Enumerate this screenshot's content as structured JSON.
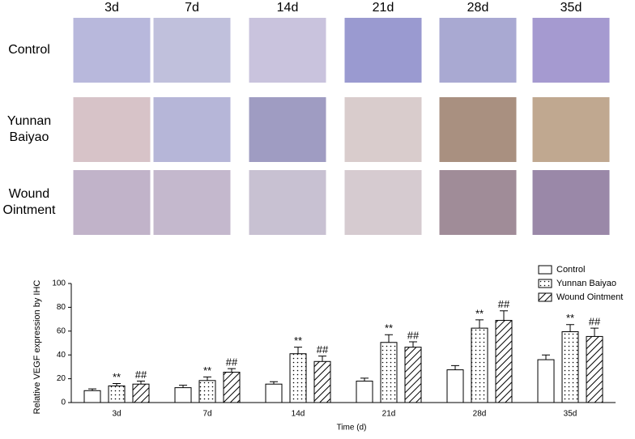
{
  "panel_grid": {
    "columns": [
      "3d",
      "7d",
      "14d",
      "21d",
      "28d",
      "35d"
    ],
    "rows": [
      "Control",
      "Yunnan Baiyao",
      "Wound Ointment"
    ]
  },
  "chart_data": {
    "type": "bar",
    "ylabel": "Relative VEGF expression by IHC",
    "xlabel": "Time (d)",
    "categories": [
      "3d",
      "7d",
      "14d",
      "21d",
      "28d",
      "35d"
    ],
    "ylim": [
      0,
      100
    ],
    "yticks": [
      0,
      20,
      40,
      60,
      80,
      100
    ],
    "legend": "top-right",
    "series": [
      {
        "name": "Control",
        "color": "#ffffff",
        "pattern": "none",
        "values": [
          10,
          12.5,
          15.5,
          18,
          27.5,
          36
        ],
        "errors": [
          1.5,
          2,
          2,
          2.5,
          3.5,
          4
        ]
      },
      {
        "name": "Yunnan Baiyao",
        "color": "#ffffff",
        "pattern": "dots",
        "values": [
          14,
          18.5,
          41,
          50.5,
          62.5,
          59.5
        ],
        "errors": [
          2,
          3,
          5.5,
          6.5,
          7,
          6
        ],
        "markers": [
          "**",
          "**",
          "**",
          "**",
          "**",
          "**"
        ]
      },
      {
        "name": "Wound Ointment",
        "color": "#ffffff",
        "pattern": "hatch",
        "values": [
          15.5,
          25.5,
          34.5,
          46.5,
          69,
          55.5
        ],
        "errors": [
          2.5,
          3,
          4.5,
          4.5,
          8,
          7
        ],
        "markers": [
          "##",
          "##",
          "##",
          "##",
          "##",
          "##"
        ]
      }
    ]
  }
}
